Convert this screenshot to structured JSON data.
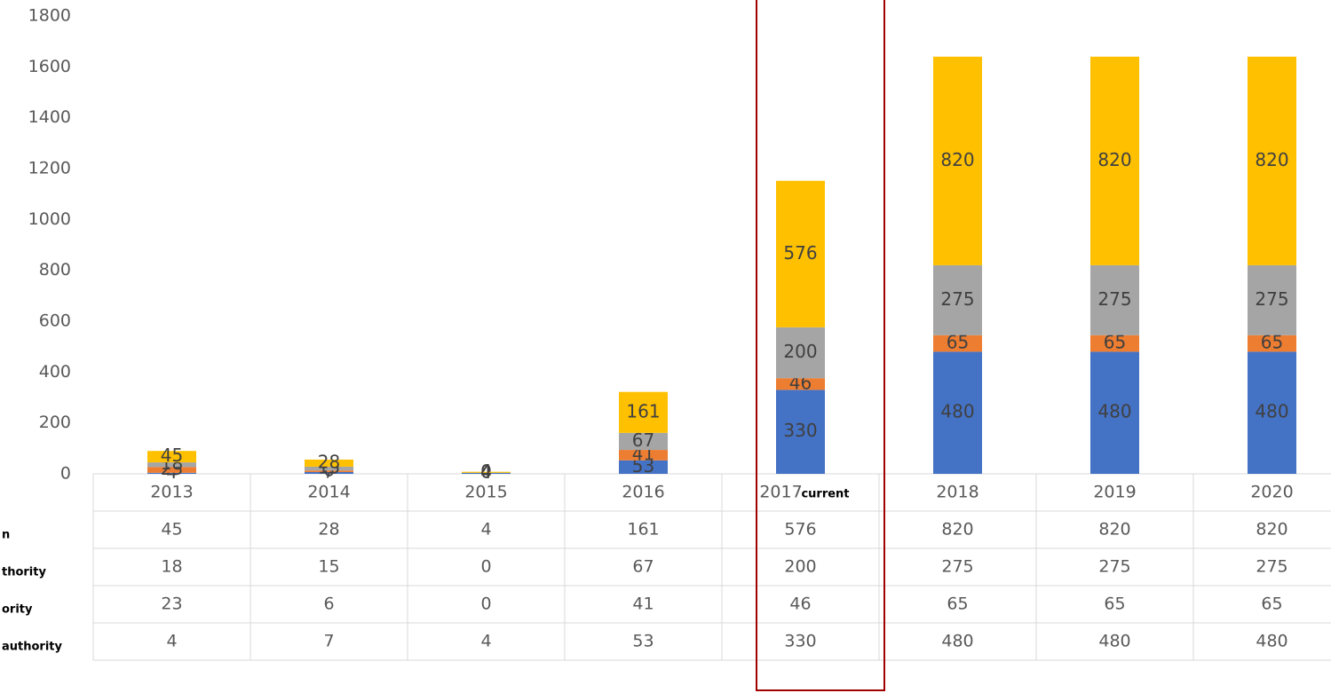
{
  "chart_data": {
    "type": "bar",
    "stacked": true,
    "categories": [
      "2013",
      "2014",
      "2015",
      "2016",
      "2017",
      "2018",
      "2019",
      "2020"
    ],
    "annotation": "current",
    "series": [
      {
        "name": "n",
        "color": "#ffc000",
        "values": [
          45,
          28,
          4,
          161,
          576,
          820,
          820,
          820
        ]
      },
      {
        "name": "thority",
        "color": "#a5a5a5",
        "values": [
          18,
          15,
          0,
          67,
          200,
          275,
          275,
          275
        ]
      },
      {
        "name": "ority",
        "color": "#ed7d31",
        "values": [
          23,
          6,
          0,
          41,
          46,
          65,
          65,
          65
        ]
      },
      {
        "name": "authority",
        "color": "#4472c4",
        "values": [
          4,
          7,
          4,
          53,
          330,
          480,
          480,
          480
        ]
      }
    ],
    "ylim": [
      0,
      1800
    ],
    "yticks": [
      0,
      200,
      400,
      600,
      800,
      1000,
      1200,
      1400,
      1600,
      1800
    ]
  }
}
